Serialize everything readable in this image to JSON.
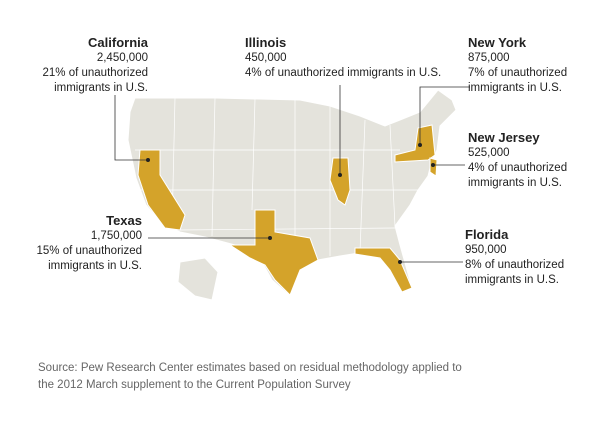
{
  "annotations": [
    {
      "state": "California",
      "count": "2,450,000",
      "share": "21% of unauthorized immigrants in U.S."
    },
    {
      "state": "Illinois",
      "count": "450,000",
      "share": "4% of unauthorized immigrants in U.S."
    },
    {
      "state": "New York",
      "count": "875,000",
      "share": "7% of unauthorized immigrants in U.S."
    },
    {
      "state": "New Jersey",
      "count": "525,000",
      "share": "4% of unauthorized immigrants in U.S."
    },
    {
      "state": "Texas",
      "count": "1,750,000",
      "share": "15% of unauthorized immigrants in U.S."
    },
    {
      "state": "Florida",
      "count": "950,000",
      "share": "8% of unauthorized immigrants in U.S."
    }
  ],
  "source": "Source: Pew Research Center estimates based on residual methodology applied to the 2012 March supplement to the Current Population Survey"
}
